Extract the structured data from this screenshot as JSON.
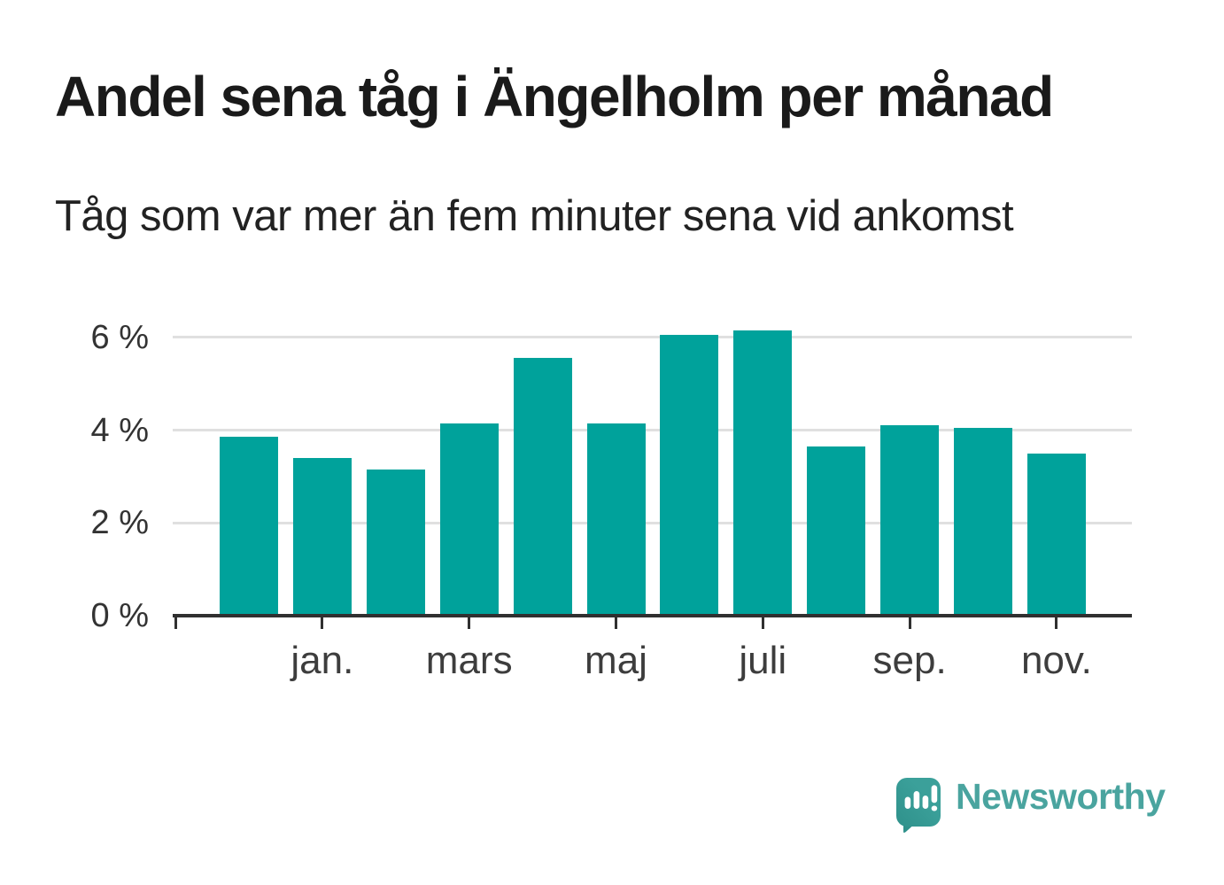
{
  "header": {
    "title": "Andel sena tåg i Ängelholm per månad",
    "subtitle": "Tåg som var mer än fem minuter sena vid ankomst"
  },
  "chart_data": {
    "type": "bar",
    "title": "Andel sena tåg i Ängelholm per månad",
    "subtitle": "Tåg som var mer än fem minuter sena vid ankomst",
    "unit": "%",
    "bar_count": 12,
    "values": [
      3.85,
      3.4,
      3.15,
      4.15,
      5.55,
      4.15,
      6.05,
      6.15,
      3.65,
      4.1,
      4.05,
      3.5
    ],
    "x_ticklabels": [
      "jan.",
      "mars",
      "maj",
      "juli",
      "sep.",
      "nov."
    ],
    "x_tick_bar_positions": [
      2,
      4,
      6,
      8,
      10,
      12
    ],
    "y_ticklabels": [
      "0 %",
      "2 %",
      "4 %",
      "6 %"
    ],
    "y_tick_values": [
      0,
      2,
      4,
      6
    ],
    "ylim": [
      0,
      6.4
    ],
    "grid": "horizontal-only",
    "legend": "none",
    "bar_color": "#00a29b",
    "axis_color": "#303030",
    "grid_color": "#e0e0e0",
    "tick_label_color": "#3d3d3d"
  },
  "branding": {
    "wordmark": "Newsworthy",
    "logo_bubble_color": "#3ba09a",
    "logo_bubble_shade_color": "#2f918b",
    "logo_glyph_color": "#ffffff",
    "wordmark_color": "#4aa49f"
  }
}
